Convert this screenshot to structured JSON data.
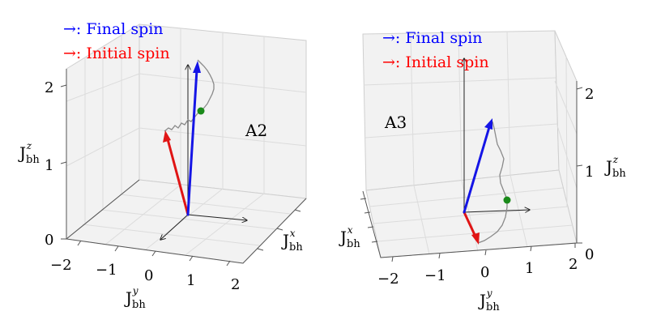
{
  "legend": {
    "final_marker": "→:",
    "final_text": "Final spin",
    "final_color": "#0000ff",
    "initial_marker": "→:",
    "initial_text": "Initial spin",
    "initial_color": "#ff0000"
  },
  "symbol": {
    "J": "J",
    "sub": "bh",
    "sup_x": "x",
    "sup_y": "y",
    "sup_z": "z"
  },
  "panels": [
    {
      "label": "A2",
      "y_ticks": [
        "−2",
        "−1",
        "0",
        "1",
        "2"
      ],
      "z_ticks": [
        "0",
        "1",
        "2"
      ]
    },
    {
      "label": "A3",
      "y_ticks": [
        "−2",
        "−1",
        "0",
        "1",
        "2"
      ],
      "z_ticks": [
        "0",
        "1",
        "2"
      ]
    }
  ],
  "colors": {
    "final_arrow": "#1515e6",
    "initial_arrow": "#e01515",
    "marker_point": "#1a8a1a"
  }
}
